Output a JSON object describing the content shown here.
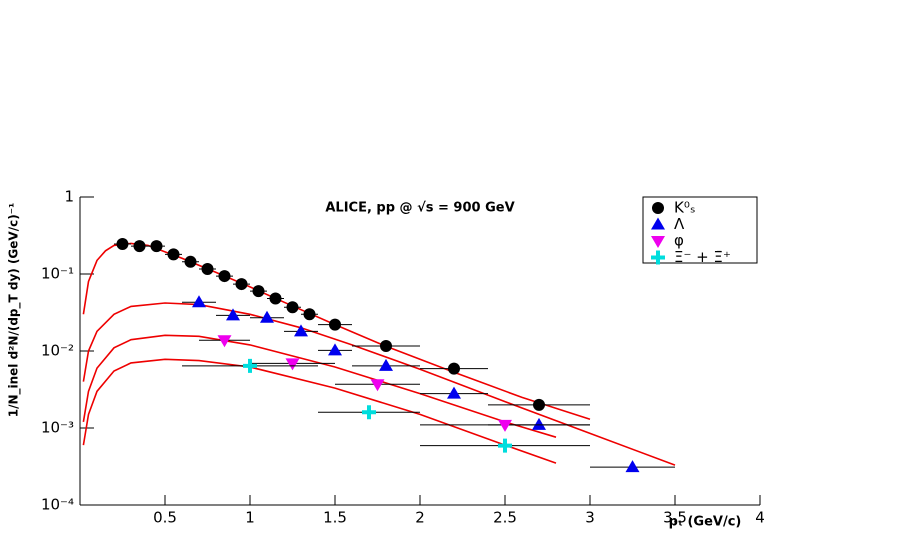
{
  "chart_data": {
    "type": "scatter",
    "title": "ALICE, pp @ √s = 900 GeV",
    "x_label": "pₜ (GeV/c)",
    "y_label": "1/N_inel d²N/(dp_T dy) (GeV/c)⁻¹",
    "xlim": [
      0,
      4
    ],
    "xticks": [
      0.5,
      1,
      1.5,
      2,
      2.5,
      3,
      3.5,
      4
    ],
    "ylim": [
      0.0001,
      1
    ],
    "log_y": true,
    "yticks": [
      {
        "value": 0.0001,
        "label": "10⁻⁴"
      },
      {
        "value": 0.001,
        "label": "10⁻³"
      },
      {
        "value": 0.01,
        "label": "10⁻²"
      },
      {
        "value": 0.1,
        "label": "10⁻¹"
      },
      1
    ],
    "legend": "top-right",
    "series": [
      {
        "name": "K⁰ₛ",
        "color": "#000000",
        "marker": "circle",
        "x": [
          0.25,
          0.35,
          0.45,
          0.55,
          0.65,
          0.75,
          0.85,
          0.95,
          1.05,
          1.15,
          1.25,
          1.35,
          1.5,
          1.8,
          2.2,
          2.7
        ],
        "values": [
          0.245,
          0.23,
          0.23,
          0.18,
          0.144,
          0.116,
          0.094,
          0.074,
          0.06,
          0.048,
          0.037,
          0.03,
          0.022,
          0.0116,
          0.0059,
          0.002
        ],
        "xerr": [
          0.05,
          0.05,
          0.05,
          0.05,
          0.05,
          0.05,
          0.05,
          0.05,
          0.05,
          0.05,
          0.05,
          0.05,
          0.1,
          0.2,
          0.2,
          0.3
        ]
      },
      {
        "name": "Λ",
        "color": "#0000ee",
        "marker": "triangle-up",
        "x": [
          0.7,
          0.9,
          1.1,
          1.3,
          1.5,
          1.8,
          2.2,
          2.7,
          3.25
        ],
        "values": [
          0.043,
          0.029,
          0.027,
          0.018,
          0.0102,
          0.0064,
          0.0028,
          0.0011,
          0.00031
        ],
        "xerr": [
          0.1,
          0.1,
          0.1,
          0.1,
          0.1,
          0.2,
          0.2,
          0.3,
          0.25
        ]
      },
      {
        "name": "φ",
        "color": "#ee00ee",
        "marker": "triangle-down",
        "x": [
          0.85,
          1.25,
          1.75,
          2.5
        ],
        "values": [
          0.0138,
          0.0069,
          0.0037,
          0.0011
        ],
        "xerr": [
          0.15,
          0.25,
          0.25,
          0.5
        ]
      },
      {
        "name": "Ξ⁻ + Ξ̄⁺",
        "color": "#00dddd",
        "marker": "cross",
        "x": [
          1.0,
          1.7,
          2.5
        ],
        "values": [
          0.0064,
          0.0016,
          0.00059
        ],
        "xerr": [
          0.4,
          0.3,
          0.5
        ]
      }
    ],
    "fits": [
      {
        "color": "#ee0000",
        "x": [
          0.02,
          0.05,
          0.1,
          0.15,
          0.2,
          0.3,
          0.4,
          0.6,
          0.8,
          1.0,
          1.2,
          1.5,
          1.8,
          2.2,
          2.6,
          3.0
        ],
        "values": [
          0.03,
          0.08,
          0.15,
          0.2,
          0.235,
          0.25,
          0.235,
          0.16,
          0.105,
          0.068,
          0.043,
          0.022,
          0.0115,
          0.0053,
          0.0025,
          0.0013
        ]
      },
      {
        "color": "#ee0000",
        "x": [
          0.02,
          0.05,
          0.1,
          0.2,
          0.3,
          0.5,
          0.7,
          1.0,
          1.3,
          1.6,
          2.0,
          2.5,
          3.0,
          3.5
        ],
        "values": [
          0.004,
          0.01,
          0.018,
          0.03,
          0.038,
          0.042,
          0.04,
          0.03,
          0.02,
          0.012,
          0.0058,
          0.0022,
          0.00085,
          0.00033
        ]
      },
      {
        "color": "#ee0000",
        "x": [
          0.02,
          0.05,
          0.1,
          0.2,
          0.3,
          0.5,
          0.7,
          1.0,
          1.5,
          2.0,
          2.5,
          2.8
        ],
        "values": [
          0.0012,
          0.003,
          0.006,
          0.011,
          0.014,
          0.016,
          0.0155,
          0.012,
          0.0062,
          0.0028,
          0.0012,
          0.00076
        ]
      },
      {
        "color": "#ee0000",
        "x": [
          0.02,
          0.05,
          0.1,
          0.2,
          0.3,
          0.5,
          0.7,
          1.0,
          1.5,
          2.0,
          2.5,
          2.8
        ],
        "values": [
          0.0006,
          0.0015,
          0.003,
          0.0055,
          0.007,
          0.0078,
          0.0075,
          0.0062,
          0.0033,
          0.0015,
          0.0006,
          0.00035
        ]
      }
    ]
  }
}
